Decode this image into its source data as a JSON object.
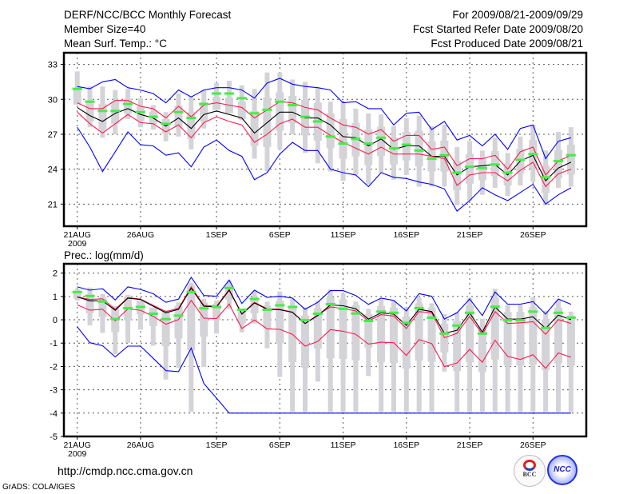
{
  "header": {
    "title": "DERF/NCC/BCC Monthly Forecast",
    "member_size": "Member Size=40",
    "variable": "Mean Surf. Temp.: °C",
    "period": "For 2009/08/21-2009/09/29",
    "started": "Fcst Started Refer Date 2009/08/20",
    "produced": "Fcst Produced Date 2009/08/21"
  },
  "footer": {
    "url": "http://cmdp.ncc.cma.gov.cn",
    "credit": "GrADS: COLA/IGES",
    "logo_bcc": "BCC",
    "logo_ncc": "NCC"
  },
  "colors": {
    "max_min": "#0000ff",
    "spread": "#ff1a4a",
    "mean": "#000000",
    "marker": "#44ee44",
    "box": "#d3d3d8",
    "grid": "#555555"
  },
  "chart_data": [
    {
      "type": "box-line",
      "title": "Mean Surf. Temp.: °C",
      "xlabel": "",
      "ylabel": "",
      "x_start": "2009-08-21",
      "n_days": 40,
      "xticks": [
        {
          "day": 0,
          "label": "21AUG",
          "sub": "2009"
        },
        {
          "day": 5,
          "label": "26AUG"
        },
        {
          "day": 11,
          "label": "1SEP"
        },
        {
          "day": 16,
          "label": "6SEP"
        },
        {
          "day": 21,
          "label": "11SEP"
        },
        {
          "day": 26,
          "label": "16SEP"
        },
        {
          "day": 31,
          "label": "21SEP"
        },
        {
          "day": 36,
          "label": "26SEP"
        }
      ],
      "yticks": [
        21,
        24,
        27,
        30,
        33
      ],
      "ylim": [
        19.1,
        34.0
      ],
      "grid": true,
      "series": [
        {
          "name": "max",
          "color": "#0000ff",
          "values": [
            31.1,
            30.9,
            31.5,
            31.7,
            31.0,
            30.8,
            30.5,
            29.7,
            30.8,
            30.2,
            30.8,
            31.0,
            31.0,
            30.8,
            30.1,
            31.4,
            31.8,
            31.3,
            31.1,
            31.0,
            30.8,
            29.7,
            29.8,
            29.2,
            29.2,
            27.8,
            28.8,
            28.9,
            27.4,
            28.1,
            26.5,
            26.9,
            26.0,
            27.0,
            25.7,
            27.5,
            27.8,
            24.9,
            26.4,
            26.7
          ]
        },
        {
          "name": "upper",
          "color": "#ff1a4a",
          "values": [
            29.7,
            29.2,
            29.2,
            29.9,
            29.9,
            29.4,
            29.2,
            28.4,
            29.4,
            28.5,
            29.5,
            29.7,
            29.5,
            29.3,
            28.4,
            29.1,
            29.8,
            29.7,
            29.3,
            29.1,
            28.4,
            27.8,
            27.6,
            27.0,
            27.4,
            26.4,
            26.9,
            26.9,
            25.7,
            25.9,
            24.3,
            24.9,
            24.9,
            25.2,
            24.0,
            25.5,
            25.9,
            23.5,
            24.7,
            25.2
          ]
        },
        {
          "name": "mean",
          "color": "#000000",
          "values": [
            29.3,
            28.6,
            28.1,
            28.8,
            29.2,
            28.7,
            28.4,
            27.7,
            28.4,
            27.5,
            28.7,
            29.0,
            28.7,
            28.4,
            27.1,
            28.0,
            28.9,
            28.9,
            28.4,
            28.4,
            27.8,
            26.8,
            26.7,
            26.0,
            26.6,
            25.7,
            26.0,
            26.0,
            25.1,
            25.1,
            23.5,
            24.2,
            24.3,
            24.4,
            23.5,
            24.7,
            25.2,
            23.0,
            24.1,
            24.6
          ]
        },
        {
          "name": "lower",
          "color": "#ff1a4a",
          "values": [
            28.9,
            27.9,
            27.1,
            27.9,
            28.7,
            28.0,
            27.9,
            27.2,
            27.8,
            26.7,
            28.0,
            28.5,
            28.1,
            27.8,
            26.3,
            27.0,
            27.9,
            28.3,
            27.6,
            27.6,
            26.9,
            26.3,
            25.8,
            25.3,
            25.9,
            25.3,
            25.3,
            25.3,
            25.1,
            24.9,
            22.6,
            23.5,
            23.7,
            23.7,
            23.0,
            23.9,
            24.6,
            22.5,
            23.6,
            24.0
          ]
        },
        {
          "name": "min",
          "color": "#0000ff",
          "values": [
            27.6,
            25.9,
            23.8,
            25.5,
            27.2,
            26.1,
            26.0,
            25.2,
            25.4,
            24.2,
            25.9,
            26.5,
            25.6,
            25.1,
            23.1,
            23.7,
            25.3,
            26.3,
            25.6,
            25.6,
            24.0,
            23.7,
            23.5,
            22.5,
            23.7,
            23.3,
            23.2,
            22.9,
            22.7,
            22.3,
            20.4,
            21.3,
            22.4,
            21.8,
            21.3,
            22.0,
            22.7,
            21.0,
            21.8,
            22.4
          ]
        }
      ],
      "markers": [
        30.9,
        29.8,
        29.0,
        29.0,
        29.6,
        28.9,
        28.5,
        27.9,
        28.9,
        28.4,
        29.6,
        30.5,
        30.5,
        30.1,
        28.8,
        29.1,
        29.8,
        29.5,
        28.5,
        28.1,
        26.8,
        26.2,
        26.6,
        26.2,
        26.7,
        25.8,
        26.1,
        25.6,
        24.9,
        25.2,
        23.7,
        24.2,
        24.1,
        24.4,
        23.7,
        24.8,
        25.3,
        23.3,
        24.7,
        25.2
      ],
      "whisker_top": [
        32.4,
        31.1,
        31.1,
        30.8,
        30.9,
        30.1,
        29.5,
        28.9,
        30.5,
        30.3,
        30.8,
        31.4,
        31.6,
        31.2,
        30.9,
        32.3,
        32.3,
        31.7,
        31.5,
        31.0,
        29.8,
        29.8,
        29.2,
        28.8,
        28.7,
        27.7,
        28.4,
        28.6,
        27.7,
        27.8,
        25.9,
        26.4,
        25.6,
        26.7,
        25.4,
        26.8,
        27.8,
        25.6,
        27.2,
        27.6
      ],
      "whisker_bottom": [
        29.8,
        27.6,
        26.7,
        27.0,
        28.3,
        27.6,
        27.4,
        26.4,
        26.8,
        25.7,
        27.5,
        29.2,
        28.9,
        28.2,
        24.9,
        23.8,
        25.7,
        27.0,
        25.4,
        24.5,
        23.8,
        23.0,
        23.5,
        22.7,
        23.7,
        23.1,
        23.5,
        22.5,
        22.5,
        22.5,
        20.9,
        21.3,
        21.8,
        22.4,
        21.7,
        22.6,
        22.9,
        20.9,
        22.4,
        22.5
      ]
    },
    {
      "type": "box-line",
      "title": "Prec.: log(mm/d)",
      "xlabel": "",
      "ylabel": "",
      "x_start": "2009-08-21",
      "n_days": 40,
      "xticks": [
        {
          "day": 0,
          "label": "21AUG",
          "sub": "2009"
        },
        {
          "day": 5,
          "label": "26AUG"
        },
        {
          "day": 11,
          "label": "1SEP"
        },
        {
          "day": 16,
          "label": "6SEP"
        },
        {
          "day": 21,
          "label": "11SEP"
        },
        {
          "day": 26,
          "label": "16SEP"
        },
        {
          "day": 31,
          "label": "21SEP"
        },
        {
          "day": 36,
          "label": "26SEP"
        }
      ],
      "yticks": [
        -5,
        -4,
        -3,
        -2,
        -1,
        0,
        1,
        2
      ],
      "ylim": [
        -5,
        2.4
      ],
      "grid": true,
      "series": [
        {
          "name": "max",
          "color": "#0000ff",
          "values": [
            1.41,
            1.27,
            1.33,
            0.85,
            1.41,
            1.3,
            1.12,
            0.75,
            0.89,
            1.82,
            1.04,
            1.01,
            1.7,
            0.7,
            1.27,
            0.96,
            1.01,
            0.93,
            0.45,
            0.75,
            1.25,
            1.25,
            1.04,
            0.66,
            0.93,
            0.83,
            0.38,
            1.12,
            1.01,
            0.03,
            0.3,
            0.89,
            0.18,
            1.19,
            0.67,
            0.67,
            0.78,
            0.24,
            0.89,
            0.66
          ]
        },
        {
          "name": "upper",
          "color": "#ff1a4a",
          "values": [
            0.98,
            0.87,
            0.9,
            0.45,
            0.95,
            0.89,
            0.62,
            0.35,
            0.49,
            1.41,
            0.62,
            0.58,
            1.3,
            0.26,
            0.75,
            0.47,
            0.45,
            0.33,
            -0.16,
            0.21,
            0.55,
            0.48,
            0.38,
            -0.05,
            0.22,
            0.16,
            -0.37,
            0.35,
            0.3,
            -0.77,
            -0.58,
            0.15,
            -0.62,
            0.35,
            -0.16,
            -0.13,
            -0.08,
            -0.62,
            0.01,
            -0.16
          ]
        },
        {
          "name": "mean",
          "color": "#000000",
          "values": [
            0.98,
            0.81,
            0.81,
            0.41,
            0.93,
            0.87,
            0.58,
            0.3,
            0.45,
            1.35,
            0.58,
            0.55,
            1.27,
            0.24,
            0.72,
            0.45,
            0.43,
            0.32,
            -0.16,
            0.18,
            0.64,
            0.6,
            0.47,
            0.03,
            0.3,
            0.24,
            -0.24,
            0.45,
            0.35,
            -0.58,
            -0.45,
            0.3,
            -0.53,
            0.55,
            0.03,
            0.03,
            0.13,
            -0.37,
            0.2,
            0.01
          ]
        },
        {
          "name": "lower",
          "color": "#ff1a4a",
          "values": [
            0.64,
            0.41,
            0.45,
            -0.05,
            0.47,
            0.41,
            0.15,
            -0.19,
            0.01,
            0.83,
            0.07,
            0.05,
            0.67,
            -0.37,
            -0.01,
            -0.39,
            -0.41,
            -0.62,
            -1.13,
            -0.93,
            -0.42,
            -0.49,
            -0.62,
            -1.04,
            -0.96,
            -0.98,
            -1.53,
            -0.85,
            -1.02,
            -2.01,
            -1.85,
            -1.27,
            -1.82,
            -0.88,
            -1.57,
            -1.7,
            -1.5,
            -2.08,
            -1.42,
            -1.61
          ]
        },
        {
          "name": "min",
          "color": "#0000ff",
          "values": [
            -0.3,
            -0.98,
            -1.11,
            -1.59,
            -1.13,
            -1.13,
            -1.65,
            -2.18,
            -2.22,
            -1.21,
            -2.73,
            -3.36,
            -4,
            -4,
            -4,
            -4,
            -4,
            -4,
            -4,
            -4,
            -4,
            -4,
            -4,
            -4,
            -4,
            -4,
            -4,
            -4,
            -4,
            -4,
            -4,
            -4,
            -4,
            -4,
            -4,
            -4,
            -4,
            -4,
            -4,
            -4
          ]
        }
      ],
      "markers": [
        1.19,
        1.02,
        0.78,
        0.03,
        0.5,
        0.55,
        0.26,
        0.03,
        0.18,
        1.19,
        0.49,
        0.55,
        1.36,
        0.43,
        0.89,
        0.43,
        0.62,
        0.55,
        -0.02,
        0.26,
        0.67,
        0.47,
        0.27,
        -0.05,
        0.35,
        0.3,
        -0.13,
        0.5,
        0.09,
        -0.59,
        -0.25,
        0.3,
        -0.59,
        0.56,
        -0.02,
        -0.02,
        0.35,
        -0.35,
        0.3,
        0.09
      ],
      "whisker_top": [
        1.33,
        1.38,
        1.1,
        0.58,
        1.07,
        0.78,
        0.47,
        0.41,
        0.75,
        1.59,
        0.9,
        0.83,
        1.69,
        0.47,
        1.23,
        0.78,
        1.21,
        0.89,
        0.53,
        0.81,
        1.3,
        1.13,
        0.78,
        0.47,
        0.89,
        0.81,
        0.53,
        0.96,
        0.7,
        0.24,
        0.32,
        0.93,
        0.05,
        1.33,
        0.64,
        0.64,
        0.95,
        0.39,
        0.83,
        0.35
      ],
      "whisker_bottom": [
        0.83,
        -0.24,
        -0.56,
        -1.47,
        -0.99,
        -0.42,
        -1.11,
        -2.56,
        -2.05,
        -3.95,
        -2.02,
        -0.59,
        0.47,
        -0.54,
        -0.16,
        -1.22,
        -2.45,
        -3.95,
        -3.95,
        -2.65,
        -3.95,
        -3.95,
        -3.95,
        -2.41,
        -3.95,
        -3.95,
        -3.95,
        -3.95,
        -3.95,
        -2.22,
        -3.95,
        -3.95,
        -3.95,
        -3.95,
        -3.95,
        -3.95,
        -3.95,
        -3.95,
        -3.95,
        -3.95
      ]
    }
  ]
}
